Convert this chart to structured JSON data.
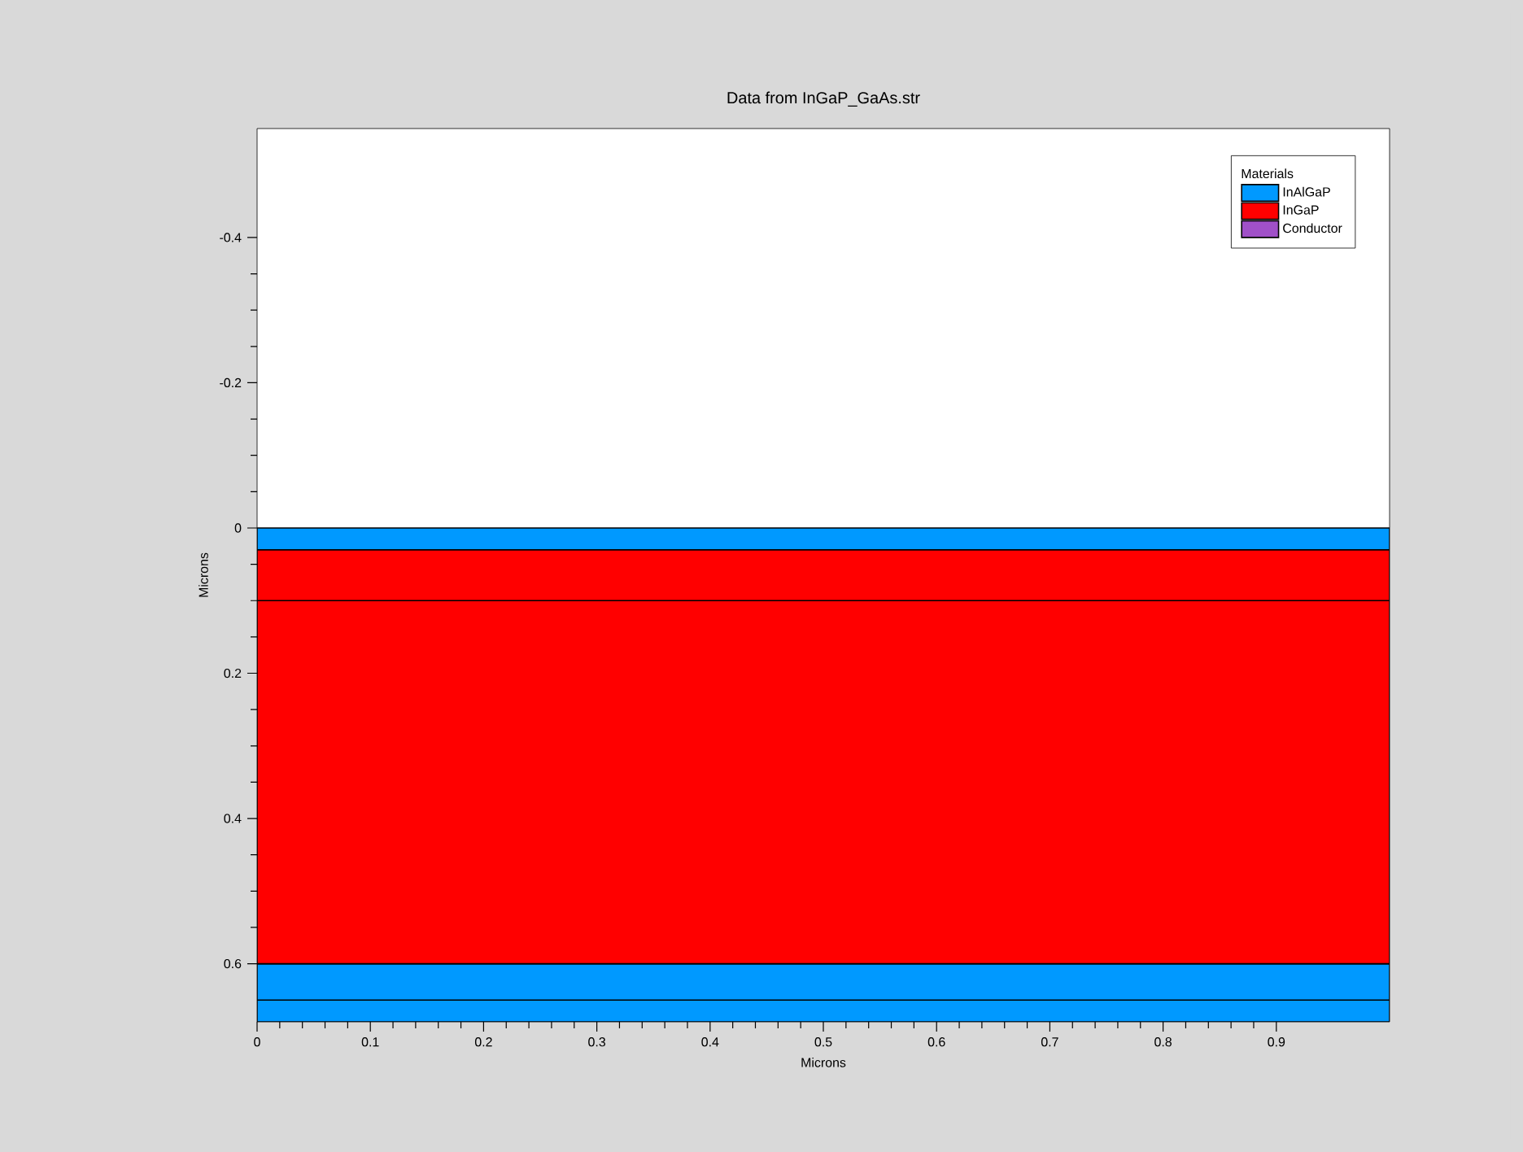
{
  "chart_data": {
    "type": "area",
    "stacked": true,
    "title": "Data from InGaP_GaAs.str",
    "xlabel": "Microns",
    "ylabel": "Microns",
    "legend_title": "Materials",
    "x": [
      0,
      1
    ],
    "series": [
      {
        "name": "InAlGaP",
        "color": "#0099ff",
        "values": [
          0.03,
          0.03
        ]
      },
      {
        "name": "InGaP",
        "color": "#ff0000",
        "values": [
          0.07,
          0.07
        ]
      },
      {
        "color": "#ff0000",
        "values": [
          0.5,
          0.5
        ]
      },
      {
        "color": "#0099ff",
        "values": [
          0.05,
          0.05
        ]
      },
      {
        "color": "#0099ff",
        "values": [
          0.03,
          0.03
        ]
      },
      {
        "name": "Conductor",
        "color": "#a050c8",
        "values": [
          null,
          null
        ]
      }
    ],
    "xlim": [
      0,
      1
    ],
    "ylim": [
      0.68,
      -0.55
    ],
    "xticks": [
      0,
      0.1,
      0.2,
      0.3,
      0.4,
      0.5,
      0.6,
      0.7,
      0.8,
      0.9
    ],
    "yticks": [
      -0.4,
      -0.2,
      0,
      0.2,
      0.4,
      0.6
    ],
    "grid": false,
    "legend": "top right"
  }
}
